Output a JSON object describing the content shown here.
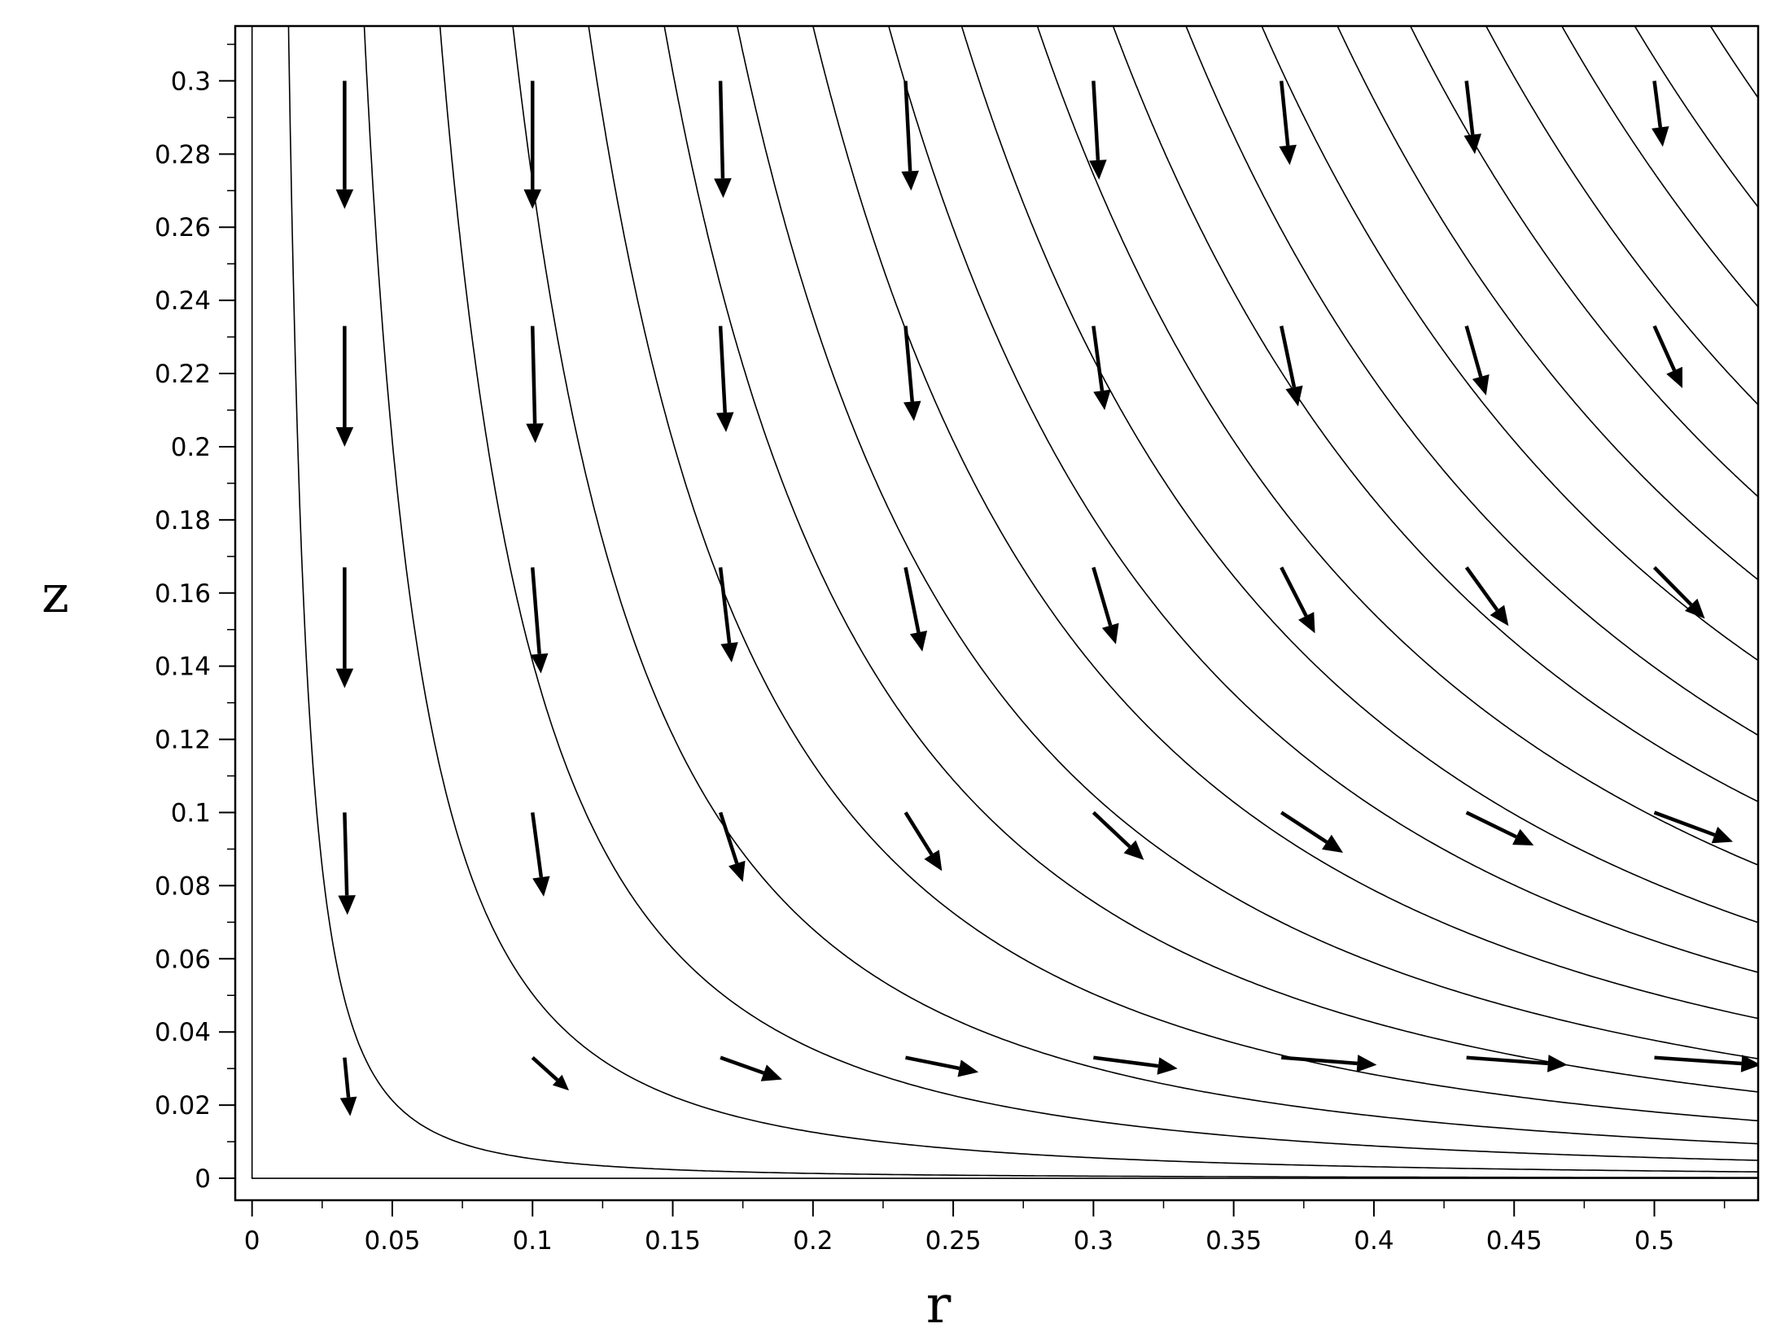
{
  "chart_data": {
    "type": "streamline",
    "title": "",
    "xlabel": "r",
    "ylabel": "z",
    "xlim": [
      -0.006,
      0.537
    ],
    "ylim": [
      -0.006,
      0.315
    ],
    "x_ticks": [
      "0",
      "0.05",
      "0.1",
      "0.15",
      "0.2",
      "0.25",
      "0.3",
      "0.35",
      "0.4",
      "0.45",
      "0.5"
    ],
    "y_ticks": [
      "0",
      "0.02",
      "0.04",
      "0.06",
      "0.08",
      "0.1",
      "0.12",
      "0.14",
      "0.16",
      "0.18",
      "0.2",
      "0.22",
      "0.24",
      "0.26",
      "0.28",
      "0.3"
    ],
    "grid": false,
    "streamline_function": "r^2 * z = constant (stagnation-point flow)",
    "streamlines_top_r": [
      0.0,
      0.013,
      0.04,
      0.067,
      0.093,
      0.12,
      0.147,
      0.173,
      0.2,
      0.227,
      0.253,
      0.28,
      0.307,
      0.333,
      0.36,
      0.387,
      0.413,
      0.44,
      0.467,
      0.493,
      0.52
    ],
    "arrow_field": [
      {
        "r": 0.033,
        "z": 0.3,
        "dr": 0.0,
        "dz": -0.035
      },
      {
        "r": 0.1,
        "z": 0.3,
        "dr": 0.0,
        "dz": -0.035
      },
      {
        "r": 0.167,
        "z": 0.3,
        "dr": 0.001,
        "dz": -0.032
      },
      {
        "r": 0.233,
        "z": 0.3,
        "dr": 0.002,
        "dz": -0.03
      },
      {
        "r": 0.3,
        "z": 0.3,
        "dr": 0.002,
        "dz": -0.027
      },
      {
        "r": 0.367,
        "z": 0.3,
        "dr": 0.003,
        "dz": -0.023
      },
      {
        "r": 0.433,
        "z": 0.3,
        "dr": 0.003,
        "dz": -0.02
      },
      {
        "r": 0.5,
        "z": 0.3,
        "dr": 0.003,
        "dz": -0.018
      },
      {
        "r": 0.033,
        "z": 0.233,
        "dr": 0.0,
        "dz": -0.033
      },
      {
        "r": 0.1,
        "z": 0.233,
        "dr": 0.001,
        "dz": -0.032
      },
      {
        "r": 0.167,
        "z": 0.233,
        "dr": 0.002,
        "dz": -0.029
      },
      {
        "r": 0.233,
        "z": 0.233,
        "dr": 0.003,
        "dz": -0.026
      },
      {
        "r": 0.3,
        "z": 0.233,
        "dr": 0.004,
        "dz": -0.023
      },
      {
        "r": 0.367,
        "z": 0.233,
        "dr": 0.006,
        "dz": -0.022
      },
      {
        "r": 0.433,
        "z": 0.233,
        "dr": 0.007,
        "dz": -0.019
      },
      {
        "r": 0.5,
        "z": 0.233,
        "dr": 0.01,
        "dz": -0.017
      },
      {
        "r": 0.033,
        "z": 0.167,
        "dr": 0.0,
        "dz": -0.033
      },
      {
        "r": 0.1,
        "z": 0.167,
        "dr": 0.003,
        "dz": -0.029
      },
      {
        "r": 0.167,
        "z": 0.167,
        "dr": 0.004,
        "dz": -0.026
      },
      {
        "r": 0.233,
        "z": 0.167,
        "dr": 0.006,
        "dz": -0.023
      },
      {
        "r": 0.3,
        "z": 0.167,
        "dr": 0.008,
        "dz": -0.021
      },
      {
        "r": 0.367,
        "z": 0.167,
        "dr": 0.012,
        "dz": -0.018
      },
      {
        "r": 0.433,
        "z": 0.167,
        "dr": 0.015,
        "dz": -0.016
      },
      {
        "r": 0.5,
        "z": 0.167,
        "dr": 0.018,
        "dz": -0.014
      },
      {
        "r": 0.033,
        "z": 0.1,
        "dr": 0.001,
        "dz": -0.028
      },
      {
        "r": 0.1,
        "z": 0.1,
        "dr": 0.004,
        "dz": -0.023
      },
      {
        "r": 0.167,
        "z": 0.1,
        "dr": 0.008,
        "dz": -0.019
      },
      {
        "r": 0.233,
        "z": 0.1,
        "dr": 0.013,
        "dz": -0.016
      },
      {
        "r": 0.3,
        "z": 0.1,
        "dr": 0.018,
        "dz": -0.013
      },
      {
        "r": 0.367,
        "z": 0.1,
        "dr": 0.022,
        "dz": -0.011
      },
      {
        "r": 0.433,
        "z": 0.1,
        "dr": 0.024,
        "dz": -0.009
      },
      {
        "r": 0.5,
        "z": 0.1,
        "dr": 0.028,
        "dz": -0.008
      },
      {
        "r": 0.033,
        "z": 0.033,
        "dr": 0.002,
        "dz": -0.016
      },
      {
        "r": 0.1,
        "z": 0.033,
        "dr": 0.013,
        "dz": -0.009
      },
      {
        "r": 0.167,
        "z": 0.033,
        "dr": 0.022,
        "dz": -0.006
      },
      {
        "r": 0.233,
        "z": 0.033,
        "dr": 0.026,
        "dz": -0.004
      },
      {
        "r": 0.3,
        "z": 0.033,
        "dr": 0.03,
        "dz": -0.003
      },
      {
        "r": 0.367,
        "z": 0.033,
        "dr": 0.034,
        "dz": -0.002
      },
      {
        "r": 0.433,
        "z": 0.033,
        "dr": 0.036,
        "dz": -0.002
      },
      {
        "r": 0.5,
        "z": 0.033,
        "dr": 0.038,
        "dz": -0.002
      }
    ]
  }
}
